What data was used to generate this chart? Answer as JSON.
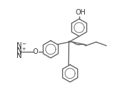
{
  "line_color": "#606060",
  "text_color": "#333333",
  "line_width": 1.0,
  "font_size": 6.5,
  "ring_r": 0.72,
  "xlim": [
    0,
    10
  ],
  "ylim": [
    0,
    8.8
  ]
}
